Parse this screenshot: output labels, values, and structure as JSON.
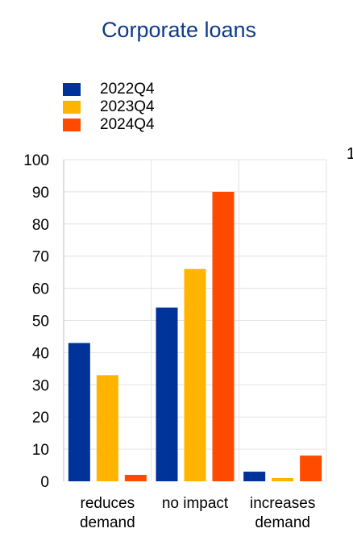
{
  "chart_data": {
    "type": "bar",
    "title": "Corporate loans",
    "xlabel": "",
    "ylabel": "",
    "categories": [
      [
        "reduces",
        "demand"
      ],
      [
        "no impact"
      ],
      [
        "increases",
        "demand"
      ]
    ],
    "series": [
      {
        "name": "2022Q4",
        "color": "#003399",
        "values": [
          43,
          54,
          3
        ]
      },
      {
        "name": "2023Q4",
        "color": "#FFB400",
        "values": [
          33,
          66,
          1
        ]
      },
      {
        "name": "2024Q4",
        "color": "#FF4B00",
        "values": [
          2,
          90,
          8
        ]
      }
    ],
    "ylim": [
      0,
      100
    ],
    "yticks": [
      0,
      10,
      20,
      30,
      40,
      50,
      60,
      70,
      80,
      90,
      100
    ],
    "grid": true,
    "legend_position": "top-left"
  },
  "edge_mark": "1"
}
